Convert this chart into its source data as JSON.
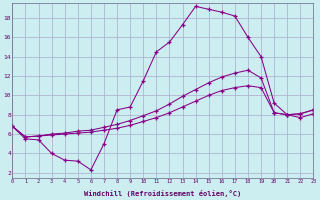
{
  "background_color": "#cceef0",
  "grid_color": "#aaaacc",
  "line_color": "#880088",
  "xlabel": "Windchill (Refroidissement éolien,°C)",
  "x_ticks": [
    0,
    1,
    2,
    3,
    4,
    5,
    6,
    7,
    8,
    9,
    10,
    11,
    12,
    13,
    14,
    15,
    16,
    17,
    18,
    19,
    20,
    21,
    22,
    23
  ],
  "y_ticks": [
    2,
    4,
    6,
    8,
    10,
    12,
    14,
    16,
    18
  ],
  "xlim": [
    0,
    23
  ],
  "ylim": [
    1.5,
    19.5
  ],
  "line1_x": [
    0,
    1,
    2,
    3,
    4,
    5,
    6,
    7,
    8,
    9,
    10,
    11,
    12,
    13,
    14,
    15,
    16,
    17,
    18,
    19,
    20,
    21,
    22,
    23
  ],
  "line1_y": [
    6.8,
    5.5,
    5.4,
    4.0,
    3.3,
    3.2,
    2.3,
    5.0,
    8.5,
    8.8,
    11.5,
    14.5,
    15.5,
    17.3,
    19.2,
    18.9,
    18.6,
    18.2,
    16.0,
    14.0,
    9.2,
    8.0,
    7.7,
    8.1
  ],
  "line2_x": [
    0,
    1,
    2,
    3,
    4,
    5,
    6,
    7,
    8,
    9,
    10,
    11,
    12,
    13,
    14,
    15,
    16,
    17,
    18,
    19,
    20,
    21,
    22,
    23
  ],
  "line2_y": [
    6.8,
    5.7,
    5.8,
    5.9,
    6.0,
    6.1,
    6.2,
    6.4,
    6.6,
    6.9,
    7.3,
    7.7,
    8.2,
    8.8,
    9.4,
    10.0,
    10.5,
    10.8,
    11.0,
    10.8,
    8.2,
    8.0,
    8.1,
    8.5
  ],
  "line3_x": [
    0,
    1,
    2,
    3,
    4,
    5,
    6,
    7,
    8,
    9,
    10,
    11,
    12,
    13,
    14,
    15,
    16,
    17,
    18,
    19,
    20,
    21,
    22,
    23
  ],
  "line3_y": [
    6.8,
    5.7,
    5.8,
    6.0,
    6.1,
    6.3,
    6.4,
    6.7,
    7.0,
    7.4,
    7.9,
    8.4,
    9.1,
    9.9,
    10.6,
    11.3,
    11.9,
    12.3,
    12.6,
    11.8,
    8.2,
    8.0,
    8.1,
    8.5
  ]
}
